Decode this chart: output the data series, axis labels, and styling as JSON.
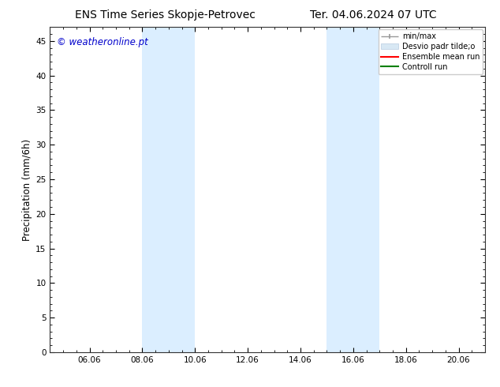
{
  "title_left": "ENS Time Series Skopje-Petrovec",
  "title_right": "Ter. 04.06.2024 07 UTC",
  "ylabel": "Precipitation (mm/6h)",
  "watermark": "© weatheronline.pt",
  "watermark_color": "#0000cc",
  "xlim_left": 4.5,
  "xlim_right": 21.0,
  "ylim_bottom": 0,
  "ylim_top": 47,
  "yticks": [
    0,
    5,
    10,
    15,
    20,
    25,
    30,
    35,
    40,
    45
  ],
  "xtick_labels": [
    "06.06",
    "08.06",
    "10.06",
    "12.06",
    "14.06",
    "16.06",
    "18.06",
    "20.06"
  ],
  "xtick_positions": [
    6,
    8,
    10,
    12,
    14,
    16,
    18,
    20
  ],
  "shaded_bands": [
    {
      "xmin": 8.0,
      "xmax": 10.0
    },
    {
      "xmin": 15.0,
      "xmax": 17.0
    }
  ],
  "shade_color": "#dbeeff",
  "shade_alpha": 1.0,
  "bg_color": "#ffffff",
  "legend_labels": [
    "min/max",
    "Desvio padr tilde;o",
    "Ensemble mean run",
    "Controll run"
  ],
  "legend_colors": [
    "#aaaaaa",
    "#ccddee",
    "#ff0000",
    "#008000"
  ],
  "title_fontsize": 10,
  "tick_fontsize": 7.5,
  "ylabel_fontsize": 8.5,
  "watermark_fontsize": 8.5,
  "legend_fontsize": 7
}
